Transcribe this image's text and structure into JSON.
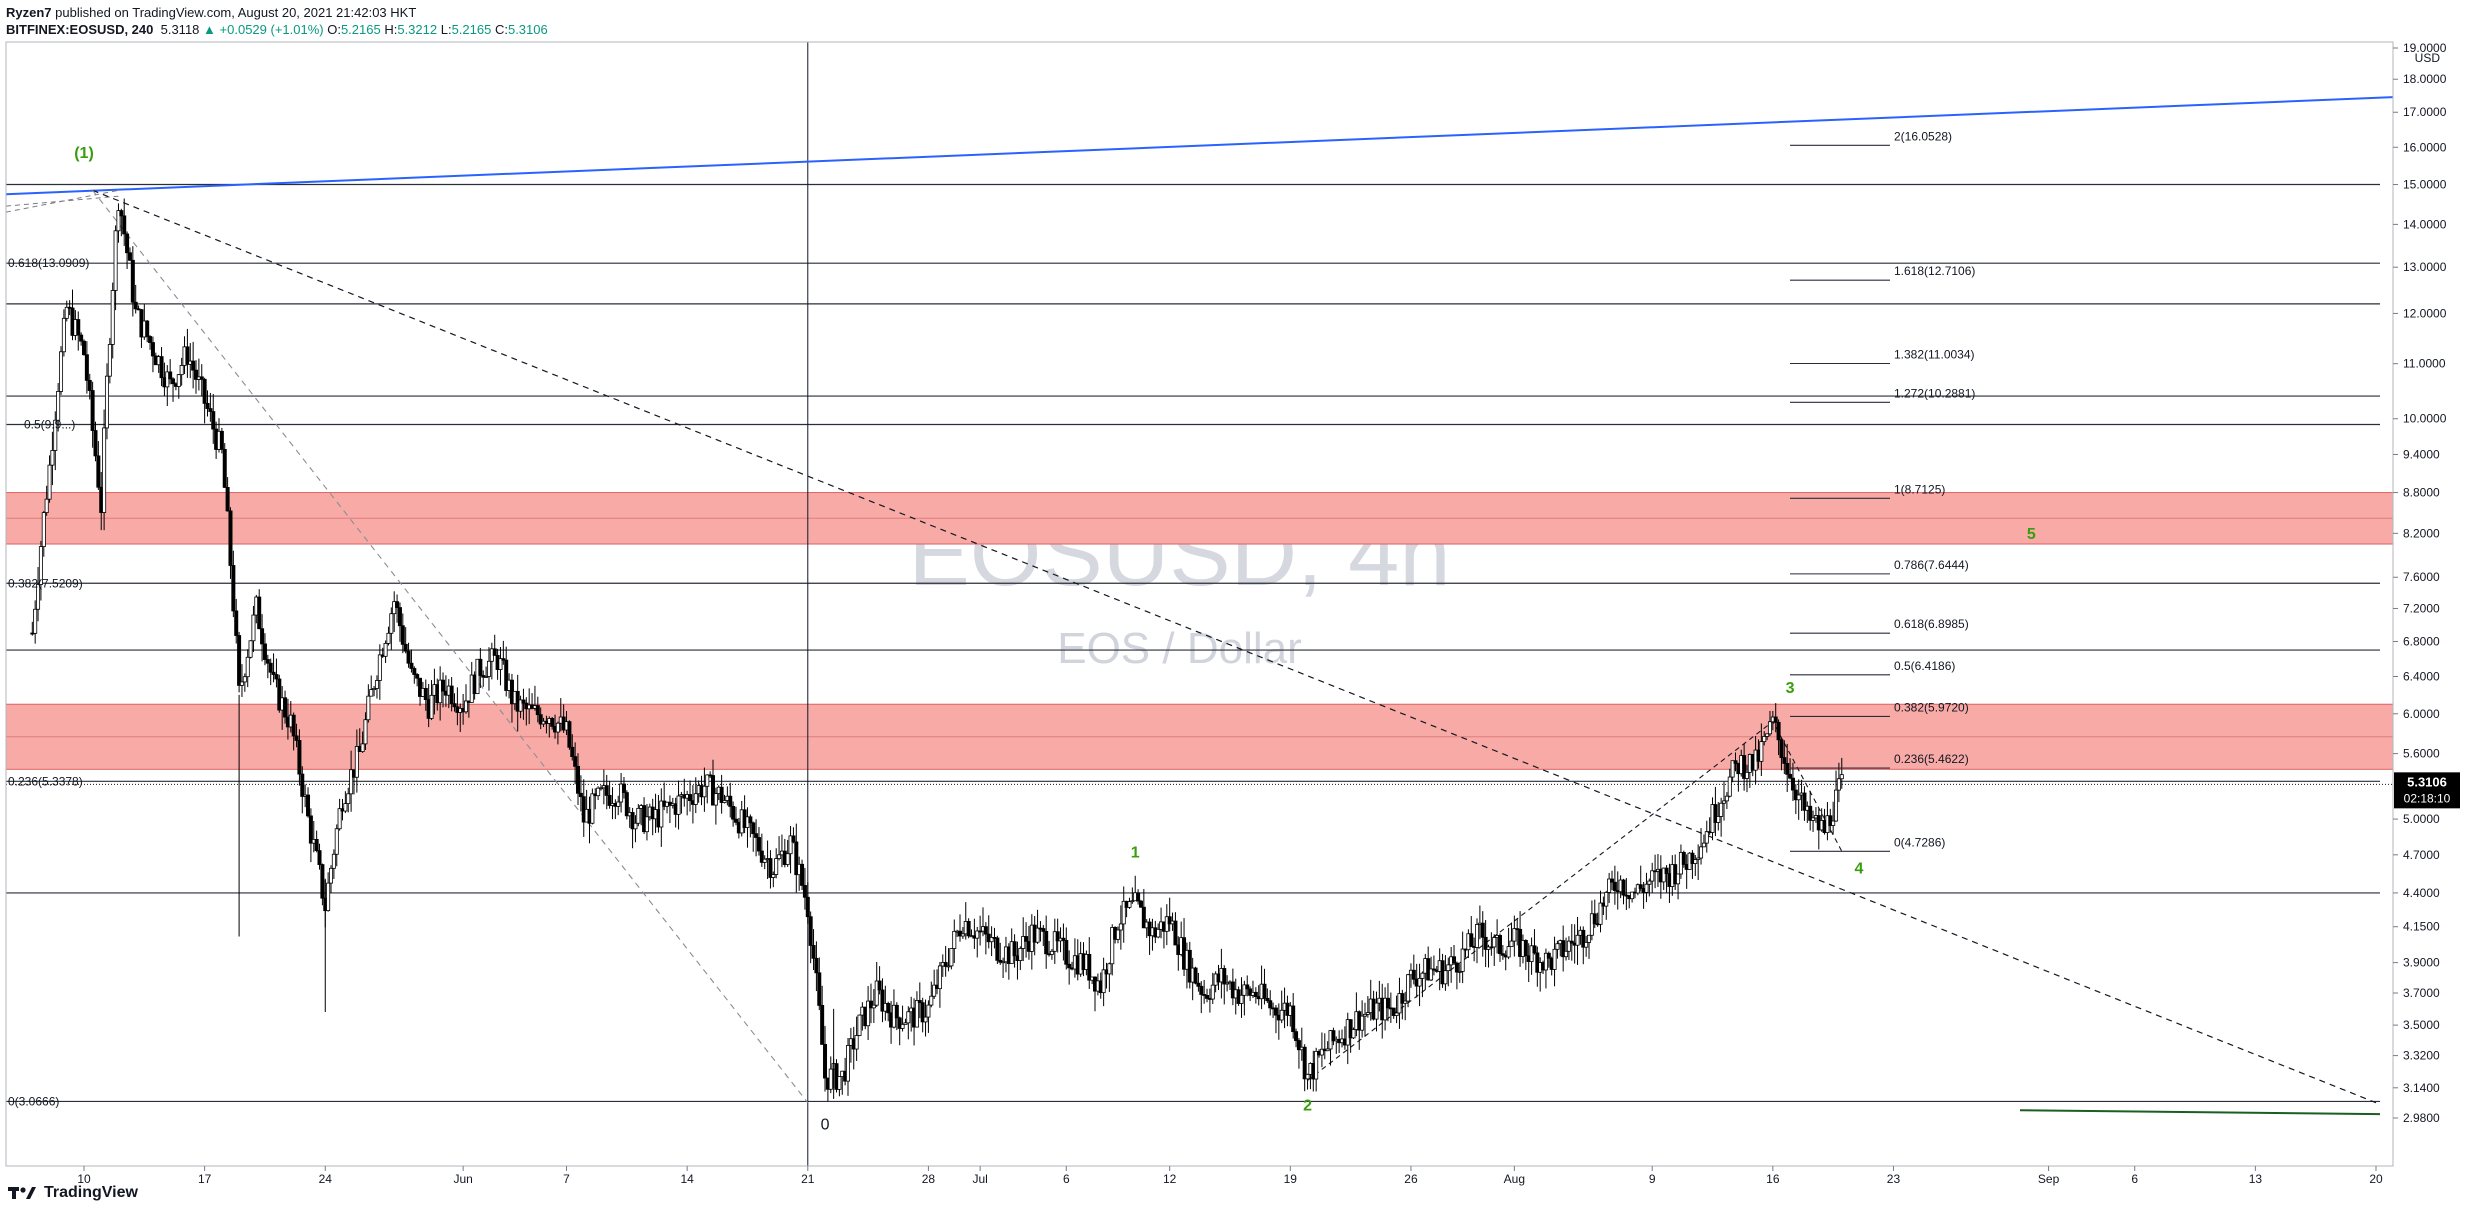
{
  "header": {
    "author": "Ryzen7",
    "published_text": "published on TradingView.com, August 20, 2021 21:42:03 HKT",
    "symbol": "BITFINEX:EOSUSD, 240",
    "last": "5.3118",
    "change": "+0.0529 (+1.01%)",
    "open": "5.2165",
    "high": "5.3212",
    "low": "5.2165",
    "close": "5.3106"
  },
  "watermark": {
    "title": "EOSUSD, 4h",
    "subtitle": "EOS / Dollar"
  },
  "footer": {
    "brand": "TradingView"
  },
  "colors": {
    "candle": "#000000",
    "zone_fill": "#f8aaa6",
    "zone_border": "#e06060",
    "trendline": "#2962ff",
    "wave_label": "#389e0d",
    "price_badge": "#000000",
    "green_line": "#1b5e20"
  },
  "chart_data": {
    "type": "candlestick",
    "instrument": "BITFINEX:EOSUSD",
    "timeframe": "240",
    "x_ticks": [
      "10",
      "17",
      "24",
      "Jun",
      "7",
      "14",
      "21",
      "28",
      "Jul",
      "6",
      "12",
      "19",
      "26",
      "Aug",
      "9",
      "16",
      "23",
      "Sep",
      "6",
      "13",
      "20"
    ],
    "x_tick_dates": [
      "2021-05-10",
      "2021-05-17",
      "2021-05-24",
      "2021-06-01",
      "2021-06-07",
      "2021-06-14",
      "2021-06-21",
      "2021-06-28",
      "2021-07-01",
      "2021-07-06",
      "2021-07-12",
      "2021-07-19",
      "2021-07-26",
      "2021-08-01",
      "2021-08-09",
      "2021-08-16",
      "2021-08-23",
      "2021-09-01",
      "2021-09-06",
      "2021-09-13",
      "2021-09-20"
    ],
    "y_axis_unit": "USD",
    "y_ticks": [
      "19.0000",
      "18.0000",
      "17.0000",
      "16.0000",
      "15.0000",
      "14.0000",
      "13.0000",
      "12.0000",
      "11.0000",
      "10.0000",
      "9.4000",
      "8.8000",
      "8.2000",
      "7.6000",
      "7.2000",
      "6.8000",
      "6.4000",
      "6.0000",
      "5.6000",
      "5.0000",
      "4.7000",
      "4.4000",
      "4.1500",
      "3.9000",
      "3.7000",
      "3.5000",
      "3.3200",
      "3.1400",
      "2.9800"
    ],
    "y_scale": "log",
    "current_price": {
      "value": "5.3106",
      "countdown": "02:18:10"
    },
    "price_path": [
      [
        "2021-05-07",
        6.9
      ],
      [
        "2021-05-08",
        9.2
      ],
      [
        "2021-05-09",
        12.1
      ],
      [
        "2021-05-10",
        11.2
      ],
      [
        "2021-05-10 12:00",
        9.8
      ],
      [
        "2021-05-11",
        8.6
      ],
      [
        "2021-05-12",
        14.7
      ],
      [
        "2021-05-13",
        12.0
      ],
      [
        "2021-05-14",
        11.3
      ],
      [
        "2021-05-15",
        10.6
      ],
      [
        "2021-05-16",
        11.2
      ],
      [
        "2021-05-17",
        10.3
      ],
      [
        "2021-05-18",
        9.4
      ],
      [
        "2021-05-19",
        6.2
      ],
      [
        "2021-05-20",
        7.2
      ],
      [
        "2021-05-21",
        6.3
      ],
      [
        "2021-05-22",
        5.9
      ],
      [
        "2021-05-23",
        5.0
      ],
      [
        "2021-05-24",
        4.3
      ],
      [
        "2021-05-25",
        5.2
      ],
      [
        "2021-05-26",
        5.6
      ],
      [
        "2021-05-27",
        6.5
      ],
      [
        "2021-05-28",
        7.3
      ],
      [
        "2021-05-29",
        6.4
      ],
      [
        "2021-05-30",
        6.1
      ],
      [
        "2021-05-31",
        6.3
      ],
      [
        "2021-06-01",
        6.1
      ],
      [
        "2021-06-02",
        6.5
      ],
      [
        "2021-06-03",
        6.6
      ],
      [
        "2021-06-04",
        6.1
      ],
      [
        "2021-06-05",
        6.0
      ],
      [
        "2021-06-06",
        6.0
      ],
      [
        "2021-06-07",
        5.8
      ],
      [
        "2021-06-08",
        5.0
      ],
      [
        "2021-06-09",
        5.2
      ],
      [
        "2021-06-10",
        5.25
      ],
      [
        "2021-06-11",
        5.0
      ],
      [
        "2021-06-12",
        5.0
      ],
      [
        "2021-06-13",
        5.1
      ],
      [
        "2021-06-14",
        5.2
      ],
      [
        "2021-06-15",
        5.3
      ],
      [
        "2021-06-16",
        5.2
      ],
      [
        "2021-06-17",
        5.0
      ],
      [
        "2021-06-18",
        4.8
      ],
      [
        "2021-06-19",
        4.6
      ],
      [
        "2021-06-20",
        4.8
      ],
      [
        "2021-06-21",
        4.3
      ],
      [
        "2021-06-22",
        3.2
      ],
      [
        "2021-06-23",
        3.2
      ],
      [
        "2021-06-24",
        3.5
      ],
      [
        "2021-06-25",
        3.7
      ],
      [
        "2021-06-26",
        3.55
      ],
      [
        "2021-06-27",
        3.55
      ],
      [
        "2021-06-28",
        3.6
      ],
      [
        "2021-06-29",
        3.9
      ],
      [
        "2021-06-30",
        4.2
      ],
      [
        "2021-07-01",
        4.1
      ],
      [
        "2021-07-02",
        4.0
      ],
      [
        "2021-07-03",
        3.95
      ],
      [
        "2021-07-04",
        4.1
      ],
      [
        "2021-07-05",
        4.05
      ],
      [
        "2021-07-06",
        3.95
      ],
      [
        "2021-07-07",
        3.9
      ],
      [
        "2021-07-08",
        3.75
      ],
      [
        "2021-07-09",
        4.2
      ],
      [
        "2021-07-10",
        4.3
      ],
      [
        "2021-07-11",
        4.1
      ],
      [
        "2021-07-12",
        4.2
      ],
      [
        "2021-07-13",
        3.9
      ],
      [
        "2021-07-14",
        3.7
      ],
      [
        "2021-07-15",
        3.8
      ],
      [
        "2021-07-16",
        3.7
      ],
      [
        "2021-07-17",
        3.7
      ],
      [
        "2021-07-18",
        3.6
      ],
      [
        "2021-07-19",
        3.6
      ],
      [
        "2021-07-20",
        3.2
      ],
      [
        "2021-07-21",
        3.35
      ],
      [
        "2021-07-22",
        3.45
      ],
      [
        "2021-07-23",
        3.55
      ],
      [
        "2021-07-24",
        3.6
      ],
      [
        "2021-07-25",
        3.6
      ],
      [
        "2021-07-26",
        3.8
      ],
      [
        "2021-07-27",
        3.85
      ],
      [
        "2021-07-28",
        3.85
      ],
      [
        "2021-07-29",
        3.95
      ],
      [
        "2021-07-30",
        4.1
      ],
      [
        "2021-07-31",
        4.0
      ],
      [
        "2021-08-01",
        4.05
      ],
      [
        "2021-08-02",
        3.95
      ],
      [
        "2021-08-03",
        3.9
      ],
      [
        "2021-08-04",
        4.0
      ],
      [
        "2021-08-05",
        4.1
      ],
      [
        "2021-08-06",
        4.3
      ],
      [
        "2021-08-07",
        4.5
      ],
      [
        "2021-08-08",
        4.4
      ],
      [
        "2021-08-09",
        4.5
      ],
      [
        "2021-08-10",
        4.55
      ],
      [
        "2021-08-11",
        4.65
      ],
      [
        "2021-08-12",
        4.85
      ],
      [
        "2021-08-13",
        5.2
      ],
      [
        "2021-08-14",
        5.5
      ],
      [
        "2021-08-15",
        5.5
      ],
      [
        "2021-08-16",
        5.9
      ],
      [
        "2021-08-17",
        5.4
      ],
      [
        "2021-08-18",
        5.0
      ],
      [
        "2021-08-19",
        4.9
      ],
      [
        "2021-08-20",
        5.31
      ]
    ],
    "wave_labels": [
      {
        "text": "(1)",
        "date": "2021-05-10",
        "price": 15.7
      },
      {
        "text": "1",
        "date": "2021-07-10",
        "price": 4.68
      },
      {
        "text": "2",
        "date": "2021-07-20",
        "price": 3.02
      },
      {
        "text": "3",
        "date": "2021-08-17",
        "price": 6.22
      },
      {
        "text": "4",
        "date": "2021-08-21",
        "price": 4.55
      },
      {
        "text": "5",
        "date": "2021-08-31",
        "price": 8.12
      },
      {
        "text": "0",
        "date": "2021-06-22",
        "price": 2.92
      }
    ],
    "fib_retracement_labels": [
      {
        "text": "0.618(13.0909)",
        "price": 13.0909
      },
      {
        "text": "0.5(9.9...)",
        "price": 9.9
      },
      {
        "text": "0.382(7.5209)",
        "price": 7.5209
      },
      {
        "text": "0.236(5.3378)",
        "price": 5.3378
      },
      {
        "text": "0(3.0666)",
        "price": 3.0666
      }
    ],
    "fib_retracement_lines": [
      15.0,
      13.0909,
      12.2,
      10.4,
      9.9,
      7.5209,
      6.7,
      5.3378,
      4.4,
      3.0666
    ],
    "fib_extension_labels": [
      {
        "text": "2(16.0528)",
        "price": 16.0528
      },
      {
        "text": "1.618(12.7106)",
        "price": 12.7106
      },
      {
        "text": "1.382(11.0034)",
        "price": 11.0034
      },
      {
        "text": "1.272(10.2881)",
        "price": 10.2881
      },
      {
        "text": "1(8.7125)",
        "price": 8.7125
      },
      {
        "text": "0.786(7.6444)",
        "price": 7.6444
      },
      {
        "text": "0.618(6.8985)",
        "price": 6.8985
      },
      {
        "text": "0.5(6.4186)",
        "price": 6.4186
      },
      {
        "text": "0.382(5.9720)",
        "price": 5.972
      },
      {
        "text": "0.236(5.4622)",
        "price": 5.4622
      },
      {
        "text": "0(4.7286)",
        "price": 4.7286
      }
    ],
    "zones": [
      {
        "top": 8.8,
        "bottom": 8.05
      },
      {
        "top": 6.1,
        "bottom": 5.45
      }
    ]
  }
}
